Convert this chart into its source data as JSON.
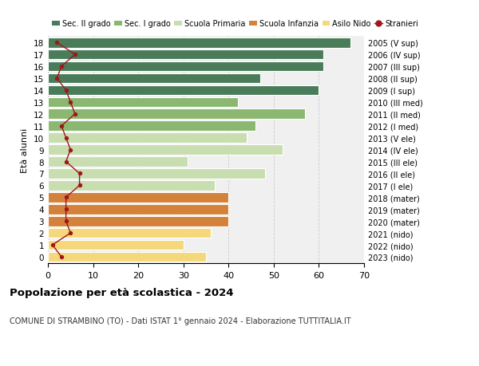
{
  "ages": [
    0,
    1,
    2,
    3,
    4,
    5,
    6,
    7,
    8,
    9,
    10,
    11,
    12,
    13,
    14,
    15,
    16,
    17,
    18
  ],
  "years": [
    "2023 (nido)",
    "2022 (nido)",
    "2021 (nido)",
    "2020 (mater)",
    "2019 (mater)",
    "2018 (mater)",
    "2017 (I ele)",
    "2016 (II ele)",
    "2015 (III ele)",
    "2014 (IV ele)",
    "2013 (V ele)",
    "2012 (I med)",
    "2011 (II med)",
    "2010 (III med)",
    "2009 (I sup)",
    "2008 (II sup)",
    "2007 (III sup)",
    "2006 (IV sup)",
    "2005 (V sup)"
  ],
  "bar_values": [
    35,
    30,
    36,
    40,
    40,
    40,
    37,
    48,
    31,
    52,
    44,
    46,
    57,
    42,
    60,
    47,
    61,
    61,
    67
  ],
  "bar_colors": [
    "#f5d87a",
    "#f5d87a",
    "#f5d87a",
    "#d4823a",
    "#d4823a",
    "#d4823a",
    "#c8ddb0",
    "#c8ddb0",
    "#c8ddb0",
    "#c8ddb0",
    "#c8ddb0",
    "#8ab870",
    "#8ab870",
    "#8ab870",
    "#4a7c59",
    "#4a7c59",
    "#4a7c59",
    "#4a7c59",
    "#4a7c59"
  ],
  "stranieri": [
    3,
    1,
    5,
    4,
    4,
    4,
    7,
    7,
    4,
    5,
    4,
    3,
    6,
    5,
    4,
    2,
    3,
    6,
    2
  ],
  "legend_labels": [
    "Sec. II grado",
    "Sec. I grado",
    "Scuola Primaria",
    "Scuola Infanzia",
    "Asilo Nido",
    "Stranieri"
  ],
  "legend_colors": [
    "#4a7c59",
    "#8ab870",
    "#c8ddb0",
    "#d4823a",
    "#f5d87a",
    "#a0161a"
  ],
  "ylabel": "Età alunni",
  "title": "Popolazione per età scolastica - 2024",
  "subtitle": "COMUNE DI STRAMBINO (TO) - Dati ISTAT 1° gennaio 2024 - Elaborazione TUTTITALIA.IT",
  "xlim": [
    0,
    70
  ],
  "xticks": [
    0,
    10,
    20,
    30,
    40,
    50,
    60,
    70
  ],
  "bg_color": "#ffffff",
  "bar_bg_color": "#f0f0f0",
  "grid_color": "#cccccc"
}
